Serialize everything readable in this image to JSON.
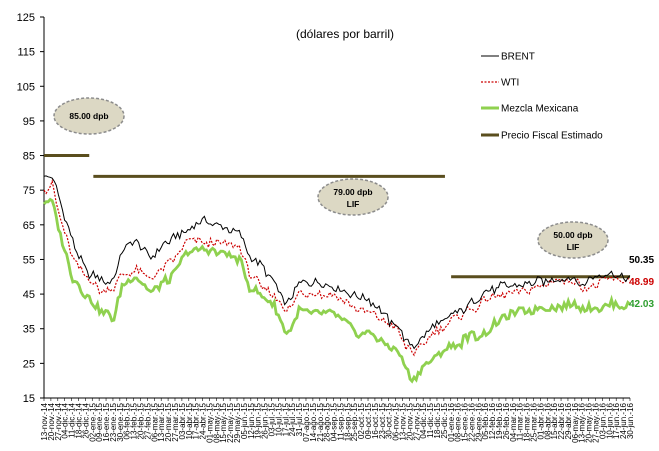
{
  "chart_data": {
    "type": "line",
    "subtitle": "(dólares por barril)",
    "ylim": [
      15,
      125
    ],
    "yticks": [
      15,
      25,
      35,
      45,
      55,
      65,
      75,
      85,
      95,
      105,
      115,
      125
    ],
    "grid": false,
    "legend_position": "top-right",
    "x_tick_labels": [
      "13-nov.-14",
      "20-nov.-14",
      "27-nov.-14",
      "04-dic.-14",
      "11-dic.-14",
      "18-dic.-14",
      "26-dic.-14",
      "02-ene.-15",
      "09-ene.-15",
      "16-ene.-15",
      "23-ene.-15",
      "30-ene.-15",
      "06-feb.-15",
      "13-feb.-15",
      "20-feb.-15",
      "27-feb.-15",
      "06-mar.-15",
      "13-mar.-15",
      "20-mar.-15",
      "27-mar.-15",
      "03-abr.-15",
      "10-abr.-15",
      "17-abr.-15",
      "24-abr.-15",
      "01-may.-15",
      "08-may.-15",
      "15-may.-15",
      "22-may.-15",
      "29-may.-15",
      "05-jun.-15",
      "12-jun.-15",
      "19-jun.-15",
      "26-jun.-15",
      "03-jul.-15",
      "10-jul.-15",
      "17-jul.-15",
      "24-jul.-15",
      "31-jul.-15",
      "07-ago.-15",
      "14-ago.-15",
      "21-ago.-15",
      "28-ago.-15",
      "04-sep.-15",
      "11-sep.-15",
      "18-sep.-15",
      "25-sep.-15",
      "02-oct.-15",
      "09-oct.-15",
      "16-oct.-15",
      "23-oct.-15",
      "30-oct.-15",
      "06-nov.-15",
      "13-nov.-15",
      "20-nov.-15",
      "27-nov.-15",
      "04-dic.-15",
      "11-dic.-15",
      "18-dic.-15",
      "25-dic.-15",
      "01-ene.-16",
      "08-ene.-16",
      "15-ene.-16",
      "22-ene.-16",
      "29-ene.-16",
      "05-feb.-16",
      "12-feb.-16",
      "19-feb.-16",
      "26-feb.-16",
      "04-mar.-16",
      "11-mar.-16",
      "18-mar.-16",
      "25-mar.-16",
      "01-abr.-16",
      "08-abr.-16",
      "15-abr.-16",
      "22-abr.-16",
      "29-abr.-16",
      "06-may.-16",
      "13-may.-16",
      "20-may.-16",
      "27-may.-16",
      "03-jun.-16",
      "10-jun.-16",
      "17-jun.-16",
      "24-jun.-16",
      "30-jun.-16"
    ],
    "series": [
      {
        "name": "BRENT",
        "color": "#000000",
        "style": "solid",
        "key": [
          0,
          79,
          4,
          79.5,
          8,
          71,
          14,
          60,
          20,
          52,
          28,
          48.5,
          34,
          49,
          38,
          58,
          45,
          60,
          52,
          55,
          60,
          60,
          70,
          64,
          78,
          66,
          86,
          65,
          95,
          63,
          100,
          56,
          106,
          53,
          112,
          48,
          118,
          42,
          124,
          48,
          132,
          49,
          140,
          48,
          146,
          46,
          152,
          44,
          160,
          43,
          166,
          38,
          172,
          36,
          176,
          31,
          180,
          30,
          186,
          34,
          190,
          36,
          196,
          38,
          202,
          40,
          210,
          43,
          216,
          46,
          222,
          47,
          230,
          48,
          240,
          49,
          248,
          49,
          256,
          49.5,
          262,
          48,
          270,
          50,
          276,
          50.35,
          280,
          50,
          285,
          50.35
        ]
      },
      {
        "name": "WTI",
        "color": "#cc0000",
        "style": "dotted",
        "key": [
          0,
          75,
          4,
          76,
          8,
          67,
          14,
          56,
          20,
          50,
          28,
          46,
          34,
          47,
          38,
          51,
          45,
          52,
          52,
          49,
          60,
          53,
          70,
          60,
          78,
          60,
          86,
          59,
          95,
          59,
          100,
          51,
          106,
          47,
          112,
          45,
          118,
          40,
          124,
          45,
          132,
          45,
          140,
          45,
          146,
          43,
          152,
          40,
          160,
          39,
          166,
          37,
          172,
          35,
          176,
          30,
          180,
          28,
          186,
          31,
          190,
          34,
          196,
          36,
          202,
          39,
          210,
          41,
          216,
          44,
          222,
          45,
          230,
          46,
          240,
          47,
          248,
          49,
          256,
          49,
          262,
          47,
          270,
          48,
          276,
          48.99,
          280,
          48.5,
          285,
          48.99
        ]
      },
      {
        "name": "Mezcla Mexicana",
        "color": "#8fd14f",
        "style": "solid",
        "key": [
          0,
          71,
          4,
          72,
          8,
          62,
          14,
          50,
          20,
          45,
          28,
          40,
          34,
          38,
          38,
          47,
          45,
          50,
          52,
          46,
          60,
          49,
          70,
          57,
          78,
          58,
          86,
          57,
          95,
          55,
          100,
          47,
          106,
          44,
          112,
          42,
          118,
          33,
          124,
          40,
          132,
          39,
          140,
          39,
          146,
          37,
          152,
          34,
          160,
          33,
          166,
          31,
          172,
          28,
          176,
          24,
          180,
          20,
          186,
          25,
          190,
          27,
          196,
          29,
          202,
          31,
          210,
          33,
          216,
          35,
          222,
          37,
          230,
          40,
          240,
          41,
          248,
          41,
          256,
          42,
          262,
          41,
          270,
          41,
          276,
          42.03,
          280,
          41.5,
          285,
          42.03
        ]
      }
    ],
    "fiscal_price": {
      "name": "Precio Fiscal Estimado",
      "color": "#5a4e1e",
      "segments": [
        {
          "from": 0,
          "to": 22,
          "value": 85
        },
        {
          "from": 24,
          "to": 195,
          "value": 79
        },
        {
          "from": 198,
          "to": 285,
          "value": 50
        }
      ]
    },
    "callouts": [
      {
        "line1": "85.00 dpb",
        "line2": ""
      },
      {
        "line1": "79.00 dpb",
        "line2": "LIF"
      },
      {
        "line1": "50.00 dpb",
        "line2": "LIF"
      }
    ],
    "end_labels": [
      {
        "text": "50.35",
        "color": "#000000"
      },
      {
        "text": "48.99",
        "color": "#cc0000"
      },
      {
        "text": "42.03",
        "color": "#2e9e2e"
      }
    ]
  }
}
